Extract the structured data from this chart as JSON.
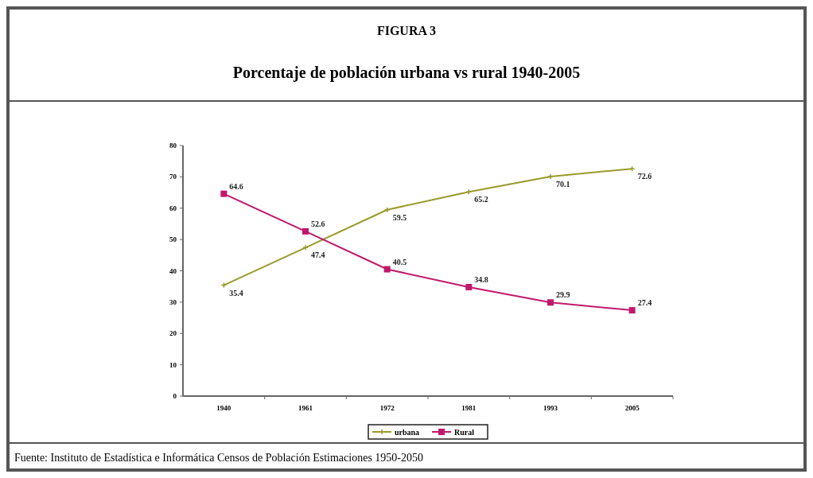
{
  "chart_data": {
    "type": "line",
    "title": "FIGURA 3",
    "subtitle": "Porcentaje de población urbana vs rural 1940-2005",
    "categories": [
      "1940",
      "1961",
      "1972",
      "1981",
      "1993",
      "2005"
    ],
    "series": [
      {
        "name": "urbana",
        "color": "#9a9a2c",
        "marker": "cross",
        "values": [
          35.4,
          47.4,
          59.5,
          65.2,
          70.1,
          72.6
        ]
      },
      {
        "name": "Rural",
        "color": "#c2186b",
        "marker": "square",
        "values": [
          64.6,
          52.6,
          40.5,
          34.8,
          29.9,
          27.4
        ]
      }
    ],
    "ylim": [
      0,
      80
    ],
    "yticks": [
      0,
      10,
      20,
      30,
      40,
      50,
      60,
      70,
      80
    ],
    "data_labels": true,
    "legend": "bottom",
    "grid": false,
    "annotations": [
      "Fuente: Instituto de Estadística e Informática Censos de Población Estimaciones 1950-2050"
    ]
  }
}
